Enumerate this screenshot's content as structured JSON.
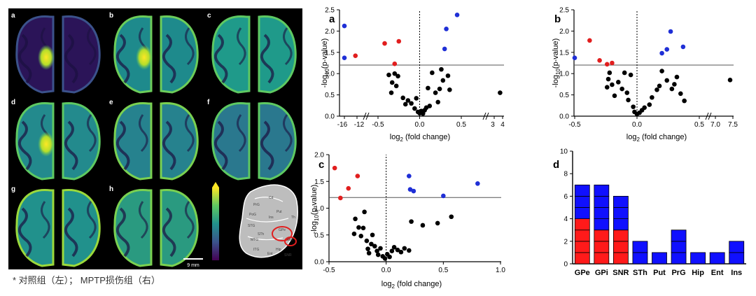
{
  "colors": {
    "background": "#ffffff",
    "brain_panel_bg": "#000000",
    "up": "#1f2fd6",
    "down": "#e11e1e",
    "neutral": "#000000",
    "bar_red": "#ff1a1a",
    "bar_blue": "#1010ff",
    "colorbar": [
      "#440154",
      "#3b528b",
      "#21918c",
      "#5ec962",
      "#fde725"
    ]
  },
  "brain_panel": {
    "labels": [
      "a",
      "b",
      "c",
      "d",
      "e",
      "f",
      "g",
      "h"
    ],
    "scale_bar": "9 mm",
    "atlas_labels": [
      "Cd",
      "Put",
      "GPe",
      "GPi",
      "Ins",
      "SNR",
      "STh",
      "Hip",
      "PrG",
      "PoG",
      "STG",
      "MTG",
      "ITG",
      "Ent",
      "Th"
    ]
  },
  "caption": "* 对照组（左）； MPTP损伤组（右）",
  "chart_data": [
    {
      "panel": "a",
      "type": "scatter",
      "xlabel": "log2 (fold change)",
      "ylabel": "-log10(p-value)",
      "x_ticks": [
        "-16",
        "-12",
        "-0.5",
        "0.0",
        "0.5",
        "3",
        "4"
      ],
      "y_ticks": [
        "0.0",
        "0.5",
        "1.0",
        "1.5",
        "2.0",
        "2.5"
      ],
      "ylim": [
        0,
        2.5
      ],
      "threshold_y": 1.2,
      "vertical_line_x": 0,
      "axis_breaks": true,
      "up": [
        [
          0.3,
          1.58
        ],
        [
          0.32,
          2.05
        ],
        [
          0.45,
          2.38
        ],
        [
          0.62,
          2.12
        ],
        [
          0.82,
          1.37
        ]
      ],
      "down": [
        [
          -12.5,
          1.42
        ],
        [
          -0.42,
          1.71
        ],
        [
          -0.3,
          1.23
        ],
        [
          -0.25,
          1.76
        ]
      ],
      "neutral": [
        [
          -0.37,
          0.97
        ],
        [
          -0.34,
          0.55
        ],
        [
          -0.33,
          0.79
        ],
        [
          -0.3,
          1.0
        ],
        [
          -0.28,
          0.71
        ],
        [
          -0.26,
          0.94
        ],
        [
          -0.2,
          0.43
        ],
        [
          -0.17,
          0.28
        ],
        [
          -0.14,
          0.37
        ],
        [
          -0.1,
          0.3
        ],
        [
          -0.06,
          0.18
        ],
        [
          -0.04,
          0.42
        ],
        [
          -0.02,
          0.1
        ],
        [
          0.0,
          0.07
        ],
        [
          0.02,
          0.12
        ],
        [
          0.04,
          0.06
        ],
        [
          0.06,
          0.14
        ],
        [
          0.08,
          0.2
        ],
        [
          0.1,
          0.66
        ],
        [
          0.12,
          0.24
        ],
        [
          0.15,
          1.02
        ],
        [
          0.19,
          0.55
        ],
        [
          0.22,
          0.33
        ],
        [
          0.24,
          0.64
        ],
        [
          0.26,
          1.1
        ],
        [
          0.28,
          0.84
        ],
        [
          0.34,
          0.95
        ],
        [
          0.36,
          0.62
        ],
        [
          3.7,
          0.55
        ]
      ]
    },
    {
      "panel": "b",
      "type": "scatter",
      "xlabel": "log2 (fold change)",
      "ylabel": "-log10(p-value)",
      "x_ticks": [
        "-0.5",
        "0.0",
        "0.5",
        "7.0",
        "7.5"
      ],
      "y_ticks": [
        "0.0",
        "0.5",
        "1.0",
        "1.5",
        "2.0",
        "2.5"
      ],
      "ylim": [
        0,
        2.5
      ],
      "threshold_y": 1.2,
      "vertical_line_x": 0,
      "axis_breaks": true,
      "up": [
        [
          0.2,
          1.48
        ],
        [
          0.24,
          1.57
        ],
        [
          0.27,
          1.99
        ],
        [
          0.37,
          1.63
        ],
        [
          0.63,
          1.37
        ]
      ],
      "down": [
        [
          -0.38,
          1.78
        ],
        [
          -0.3,
          1.31
        ],
        [
          -0.24,
          1.22
        ],
        [
          -0.2,
          1.25
        ]
      ],
      "neutral": [
        [
          -0.24,
          0.68
        ],
        [
          -0.23,
          0.87
        ],
        [
          -0.22,
          1.02
        ],
        [
          -0.2,
          0.74
        ],
        [
          -0.18,
          0.48
        ],
        [
          -0.15,
          0.8
        ],
        [
          -0.12,
          0.64
        ],
        [
          -0.1,
          1.02
        ],
        [
          -0.08,
          0.55
        ],
        [
          -0.07,
          0.38
        ],
        [
          -0.05,
          0.97
        ],
        [
          -0.03,
          0.22
        ],
        [
          -0.02,
          0.1
        ],
        [
          0.0,
          0.05
        ],
        [
          0.02,
          0.08
        ],
        [
          0.04,
          0.14
        ],
        [
          0.06,
          0.2
        ],
        [
          0.1,
          0.27
        ],
        [
          0.12,
          0.44
        ],
        [
          0.16,
          0.62
        ],
        [
          0.18,
          0.71
        ],
        [
          0.2,
          1.06
        ],
        [
          0.24,
          0.84
        ],
        [
          0.28,
          0.64
        ],
        [
          0.3,
          0.75
        ],
        [
          0.32,
          0.92
        ],
        [
          0.35,
          0.53
        ],
        [
          0.38,
          0.36
        ],
        [
          7.42,
          0.85
        ]
      ]
    },
    {
      "panel": "c",
      "type": "scatter",
      "xlabel": "log2 (fold change)",
      "ylabel": "-log10(p-value)",
      "x_ticks": [
        "-0.5",
        "0.0",
        "0.5",
        "1.0"
      ],
      "y_ticks": [
        "0.0",
        "0.5",
        "1.0",
        "1.5",
        "2.0"
      ],
      "xlim": [
        -0.5,
        1.0
      ],
      "ylim": [
        0,
        2.0
      ],
      "threshold_y": 1.2,
      "vertical_line_x": 0,
      "up": [
        [
          0.2,
          1.6
        ],
        [
          0.21,
          1.35
        ],
        [
          0.24,
          1.32
        ],
        [
          0.5,
          1.23
        ],
        [
          0.8,
          1.46
        ]
      ],
      "down": [
        [
          -0.45,
          1.75
        ],
        [
          -0.4,
          1.19
        ],
        [
          -0.33,
          1.37
        ],
        [
          -0.25,
          1.6
        ]
      ],
      "neutral": [
        [
          -0.28,
          0.52
        ],
        [
          -0.27,
          0.8
        ],
        [
          -0.24,
          0.64
        ],
        [
          -0.22,
          0.48
        ],
        [
          -0.2,
          0.63
        ],
        [
          -0.19,
          0.93
        ],
        [
          -0.17,
          0.39
        ],
        [
          -0.16,
          0.24
        ],
        [
          -0.15,
          0.16
        ],
        [
          -0.13,
          0.33
        ],
        [
          -0.12,
          0.5
        ],
        [
          -0.1,
          0.29
        ],
        [
          -0.08,
          0.2
        ],
        [
          -0.07,
          0.13
        ],
        [
          -0.05,
          0.25
        ],
        [
          -0.03,
          0.1
        ],
        [
          -0.01,
          0.06
        ],
        [
          0.01,
          0.14
        ],
        [
          0.03,
          0.09
        ],
        [
          0.05,
          0.2
        ],
        [
          0.07,
          0.27
        ],
        [
          0.1,
          0.22
        ],
        [
          0.13,
          0.18
        ],
        [
          0.16,
          0.25
        ],
        [
          0.2,
          0.21
        ],
        [
          0.22,
          0.75
        ],
        [
          0.32,
          0.68
        ],
        [
          0.45,
          0.72
        ],
        [
          0.57,
          0.84
        ]
      ]
    },
    {
      "panel": "d",
      "type": "bar",
      "stacked": true,
      "categories": [
        "GPe",
        "GPi",
        "SNR",
        "STh",
        "Put",
        "PrG",
        "Hip",
        "Ent",
        "Ins"
      ],
      "red": [
        4,
        3,
        3,
        0,
        0,
        0,
        0,
        0,
        0
      ],
      "blue": [
        3,
        4,
        3,
        2,
        1,
        3,
        1,
        1,
        2
      ],
      "ylim": [
        0,
        10
      ],
      "y_ticks": [
        "0",
        "2",
        "4",
        "6",
        "8",
        "10"
      ]
    }
  ]
}
